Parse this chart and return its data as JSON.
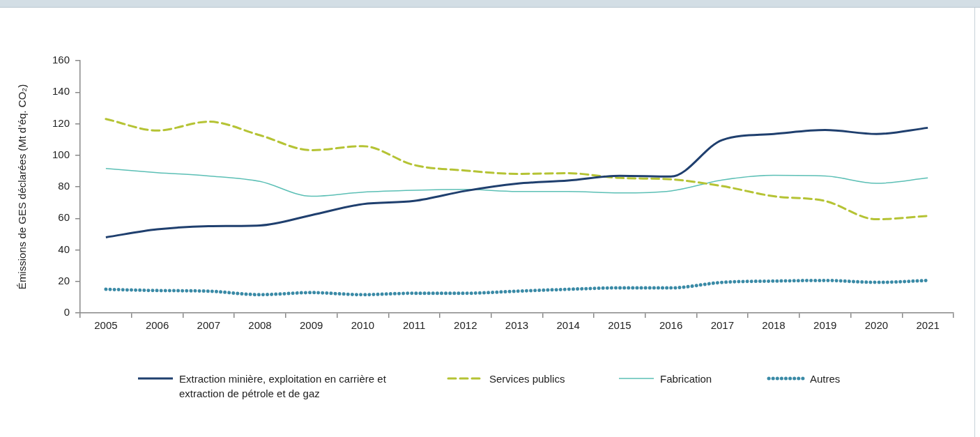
{
  "chart_data": {
    "type": "line",
    "ylabel": "Émissions de GES déclarées (Mt d’éq. CO₂)",
    "categories": [
      "2005",
      "2006",
      "2007",
      "2008",
      "2009",
      "2010",
      "2011",
      "2012",
      "2013",
      "2014",
      "2015",
      "2016",
      "2017",
      "2018",
      "2019",
      "2020",
      "2021"
    ],
    "ylim": [
      0,
      160
    ],
    "yticks": [
      0,
      20,
      40,
      60,
      80,
      100,
      120,
      140,
      160
    ],
    "grid": false,
    "legend": "bottom",
    "marker": "none",
    "series": [
      {
        "name": "Extraction minière, exploitation en carrière et extraction de pétrole et de gaz",
        "color": "#1f3f6e",
        "line_style": "solid",
        "values": [
          48,
          53,
          55,
          55.5,
          62,
          69,
          71,
          77.4,
          82,
          84,
          87,
          86.5,
          109.7,
          113.5,
          116,
          113.5,
          117.4
        ]
      },
      {
        "name": "Services publics",
        "color": "#b5c334",
        "line_style": "dashed",
        "values": [
          123,
          115.7,
          121.3,
          112.7,
          103.2,
          105.8,
          93.8,
          90.3,
          88.2,
          88.6,
          85.6,
          84.7,
          80.4,
          74,
          71,
          59.4,
          61.5
        ]
      },
      {
        "name": "Fabrication",
        "color": "#5bbfb5",
        "line_style": "solid",
        "values": [
          91.6,
          89,
          86.9,
          83.4,
          74,
          76.6,
          77.8,
          78.3,
          77,
          77,
          76.1,
          77.4,
          84.3,
          87.3,
          86.9,
          82.2,
          85.6
        ]
      },
      {
        "name": "Autres",
        "color": "#3a8aa6",
        "line_style": "dotted",
        "values": [
          15,
          14.2,
          13.8,
          11.6,
          12.9,
          11.6,
          12.5,
          12.5,
          13.8,
          15,
          15.9,
          15.9,
          19.4,
          20.2,
          20.6,
          19.4,
          20.6
        ]
      }
    ]
  }
}
